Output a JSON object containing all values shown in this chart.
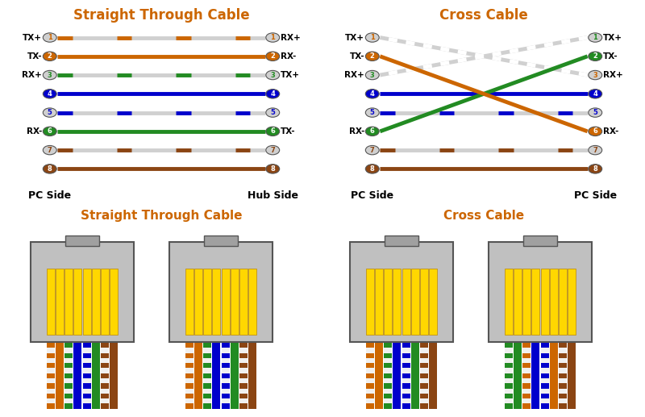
{
  "bg_color": "#ffffff",
  "title_color": "#cc6600",
  "straight_title": "Straight Through Cable",
  "cross_title": "Cross Cable",
  "straight_title2": "Straight Through Cable",
  "cross_title2": "Cross Cable",
  "wire_colors": {
    "1": {
      "solid": "#d0d0d0",
      "stripe": "#cc6600"
    },
    "2": {
      "solid": "#cc6600",
      "stripe": null
    },
    "3": {
      "solid": "#d0d0d0",
      "stripe": "#228B22"
    },
    "4": {
      "solid": "#0000cc",
      "stripe": null
    },
    "5": {
      "solid": "#d0d0d0",
      "stripe": "#0000cc"
    },
    "6": {
      "solid": "#228B22",
      "stripe": null
    },
    "7": {
      "solid": "#d0d0d0",
      "stripe": "#8B4513"
    },
    "8": {
      "solid": "#8B4513",
      "stripe": null
    }
  },
  "pin_circle_colors": {
    "1": "#d0d0d0",
    "2": "#cc6600",
    "3": "#d0d0d0",
    "4": "#0000cc",
    "5": "#d0d0d0",
    "6": "#228B22",
    "7": "#d0d0d0",
    "8": "#8B4513"
  },
  "pin_text_colors": {
    "1": "#cc6600",
    "2": "white",
    "3": "#228B22",
    "4": "white",
    "5": "#0000cc",
    "6": "white",
    "7": "#8B4513",
    "8": "white"
  },
  "straight_left_labels": [
    "TX+",
    "TX-",
    "RX+",
    "",
    "",
    "RX-",
    "",
    ""
  ],
  "straight_right_labels": [
    "RX+",
    "RX-",
    "TX+",
    "",
    "",
    "TX-",
    "",
    ""
  ],
  "cross_left_labels": [
    "TX+",
    "TX-",
    "RX+",
    "",
    "",
    "RX-",
    "",
    ""
  ],
  "cross_right_labels_map": {
    "1": "TX+",
    "2": "TX-",
    "3": "RX+",
    "4": "",
    "5": "",
    "6": "RX-",
    "7": "",
    "8": ""
  },
  "cross_mapping": {
    "1": 3,
    "2": 6,
    "3": 1,
    "4": 4,
    "5": 5,
    "6": 2,
    "7": 7,
    "8": 8
  },
  "T568B": [
    [
      "#cc6600",
      "#f0f0f0"
    ],
    [
      "#cc6600",
      null
    ],
    [
      "#228B22",
      "#f0f0f0"
    ],
    [
      "#0000cc",
      null
    ],
    [
      "#0000cc",
      "#f0f0f0"
    ],
    [
      "#228B22",
      null
    ],
    [
      "#8B4513",
      "#f0f0f0"
    ],
    [
      "#8B4513",
      null
    ]
  ],
  "T568A": [
    [
      "#228B22",
      "#f0f0f0"
    ],
    [
      "#228B22",
      null
    ],
    [
      "#cc6600",
      "#f0f0f0"
    ],
    [
      "#0000cc",
      null
    ],
    [
      "#0000cc",
      "#f0f0f0"
    ],
    [
      "#cc6600",
      null
    ],
    [
      "#8B4513",
      "#f0f0f0"
    ],
    [
      "#8B4513",
      null
    ]
  ]
}
